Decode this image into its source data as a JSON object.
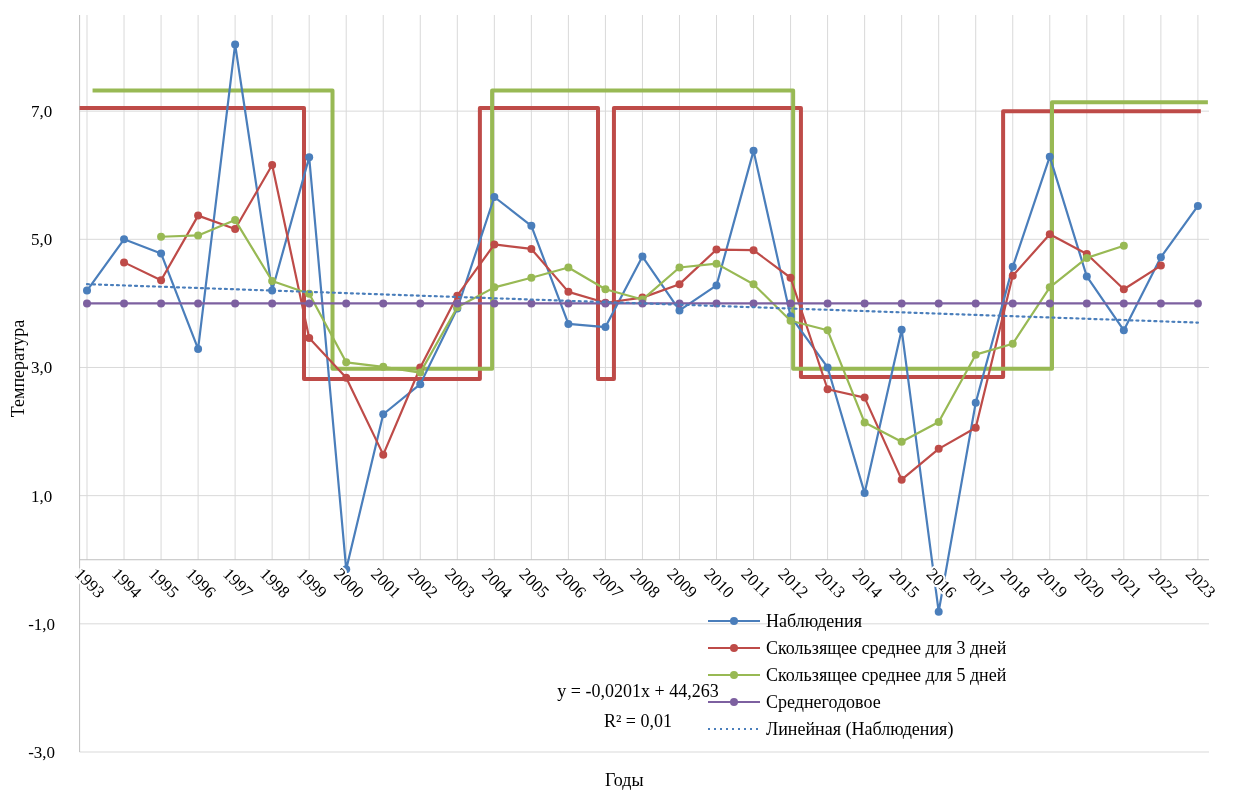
{
  "chart_data": {
    "type": "line",
    "xlabel": "Годы",
    "ylabel": "Температура",
    "xlim": [
      1992.8,
      2023.3
    ],
    "xticks": [
      1993,
      1994,
      1995,
      1996,
      1997,
      1998,
      1999,
      2000,
      2001,
      2002,
      2003,
      2004,
      2005,
      2006,
      2007,
      2008,
      2009,
      2010,
      2011,
      2012,
      2013,
      2014,
      2015,
      2016,
      2017,
      2018,
      2019,
      2020,
      2021,
      2022,
      2023
    ],
    "ylim": [
      -3,
      8.5
    ],
    "yticks": [
      {
        "value": -3,
        "label": "-3,0"
      },
      {
        "value": -1,
        "label": "-1,0"
      },
      {
        "value": 1,
        "label": "1,0"
      },
      {
        "value": 3,
        "label": "3,0"
      },
      {
        "value": 5,
        "label": "5,0"
      },
      {
        "value": 7,
        "label": "7,0"
      }
    ],
    "grid": true,
    "legend": "bottom right",
    "marker": "circle",
    "series": [
      {
        "name": "Наблюдения",
        "color": "#4a7ebb",
        "x": [
          1993,
          1994,
          1995,
          1996,
          1997,
          1998,
          1999,
          2000,
          2001,
          2002,
          2003,
          2004,
          2005,
          2006,
          2007,
          2008,
          2009,
          2010,
          2011,
          2012,
          2013,
          2014,
          2015,
          2016,
          2017,
          2018,
          2019,
          2020,
          2021,
          2022,
          2023
        ],
        "values": [
          4.2,
          5.0,
          4.78,
          3.29,
          8.04,
          4.2,
          6.28,
          -0.15,
          2.27,
          2.74,
          3.92,
          5.66,
          5.21,
          3.68,
          3.63,
          4.73,
          3.89,
          4.28,
          6.38,
          3.8,
          3.0,
          1.04,
          3.59,
          -0.81,
          2.45,
          4.57,
          6.29,
          4.42,
          3.58,
          4.72,
          5.52
        ]
      },
      {
        "name": "Скользящее среднее для 3 дней",
        "color": "#be4b48",
        "x": [
          1994,
          1995,
          1996,
          1997,
          1998,
          1999,
          2000,
          2001,
          2002,
          2003,
          2004,
          2005,
          2006,
          2007,
          2008,
          2009,
          2010,
          2011,
          2012,
          2013,
          2014,
          2015,
          2016,
          2017,
          2018,
          2019,
          2020,
          2021,
          2022
        ],
        "values": [
          4.64,
          4.36,
          5.37,
          5.16,
          6.16,
          3.46,
          2.84,
          1.64,
          3.0,
          4.12,
          4.92,
          4.85,
          4.18,
          4.01,
          4.09,
          4.3,
          4.84,
          4.83,
          4.4,
          2.66,
          2.53,
          1.25,
          1.73,
          2.06,
          4.43,
          5.08,
          4.77,
          4.22,
          4.59
        ]
      },
      {
        "name": "Скользящее среднее для 5 дней",
        "color": "#98b954",
        "x": [
          1995,
          1996,
          1997,
          1998,
          1999,
          2000,
          2001,
          2002,
          2003,
          2004,
          2005,
          2006,
          2007,
          2008,
          2009,
          2010,
          2011,
          2012,
          2013,
          2014,
          2015,
          2016,
          2017,
          2018,
          2019,
          2020,
          2021
        ],
        "values": [
          5.04,
          5.06,
          5.3,
          4.35,
          4.15,
          3.08,
          3.01,
          2.92,
          3.94,
          4.25,
          4.4,
          4.56,
          4.22,
          4.06,
          4.56,
          4.62,
          4.3,
          3.73,
          3.58,
          2.14,
          1.84,
          2.15,
          3.2,
          3.37,
          4.25,
          4.71,
          4.9
        ]
      },
      {
        "name": "Среднегодовое",
        "color": "#7d60a0",
        "x": [
          1993,
          1994,
          1995,
          1996,
          1997,
          1998,
          1999,
          2000,
          2001,
          2002,
          2003,
          2004,
          2005,
          2006,
          2007,
          2008,
          2009,
          2010,
          2011,
          2012,
          2013,
          2014,
          2015,
          2016,
          2017,
          2018,
          2019,
          2020,
          2021,
          2022,
          2023
        ],
        "values": [
          4.0,
          4.0,
          4.0,
          4.0,
          4.0,
          4.0,
          4.0,
          4.0,
          4.0,
          4.0,
          4.0,
          4.0,
          4.0,
          4.0,
          4.0,
          4.0,
          4.0,
          4.0,
          4.0,
          4.0,
          4.0,
          4.0,
          4.0,
          4.0,
          4.0,
          4.0,
          4.0,
          4.0,
          4.0,
          4.0,
          4.0
        ]
      },
      {
        "name": "Линейная (Наблюдения)",
        "color": "#4a7ebb",
        "marker": "none",
        "line_style": "dotted",
        "x": [
          1993,
          2023
        ],
        "values": [
          4.3,
          3.7
        ]
      },
      {
        "type": "step",
        "color": "#be4b48",
        "marker": "none",
        "x": [
          1992.8,
          1998.86,
          2003.61,
          2006.8,
          2007.23,
          2012.28,
          2017.74,
          2023.08
        ],
        "values": [
          7.05,
          2.82,
          7.05,
          2.82,
          7.05,
          2.85,
          7.0,
          7.0
        ]
      },
      {
        "type": "step",
        "color": "#98b954",
        "marker": "none",
        "x": [
          1993.15,
          1999.63,
          2003.94,
          2012.07,
          2019.06,
          2023.27
        ],
        "values": [
          7.32,
          2.98,
          7.32,
          2.98,
          7.14,
          7.14
        ]
      }
    ],
    "annotations": [
      "y = -0,0201x + 44,263",
      "R² = 0,01"
    ]
  }
}
